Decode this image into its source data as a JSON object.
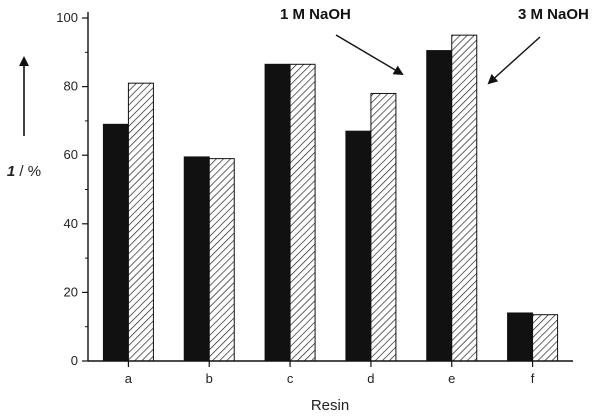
{
  "chart_data": {
    "type": "bar",
    "categories": [
      "a",
      "b",
      "c",
      "d",
      "e",
      "f"
    ],
    "series": [
      {
        "values": [
          69,
          59.5,
          86.5,
          67,
          90.5,
          14
        ],
        "fill": "solid",
        "color": "#111111"
      },
      {
        "values": [
          81,
          59,
          86.5,
          78,
          95,
          13.5
        ],
        "fill": "hatched",
        "color": "#ffffff"
      }
    ],
    "xlabel": "Resin",
    "ylabel": {
      "bold": "1",
      "rest": " / %"
    },
    "ylim": [
      0,
      100
    ],
    "yticks": [
      0,
      20,
      40,
      60,
      80,
      100
    ],
    "grid": false,
    "annotations": [
      "1 M NaOH",
      "3 M NaOH"
    ]
  }
}
